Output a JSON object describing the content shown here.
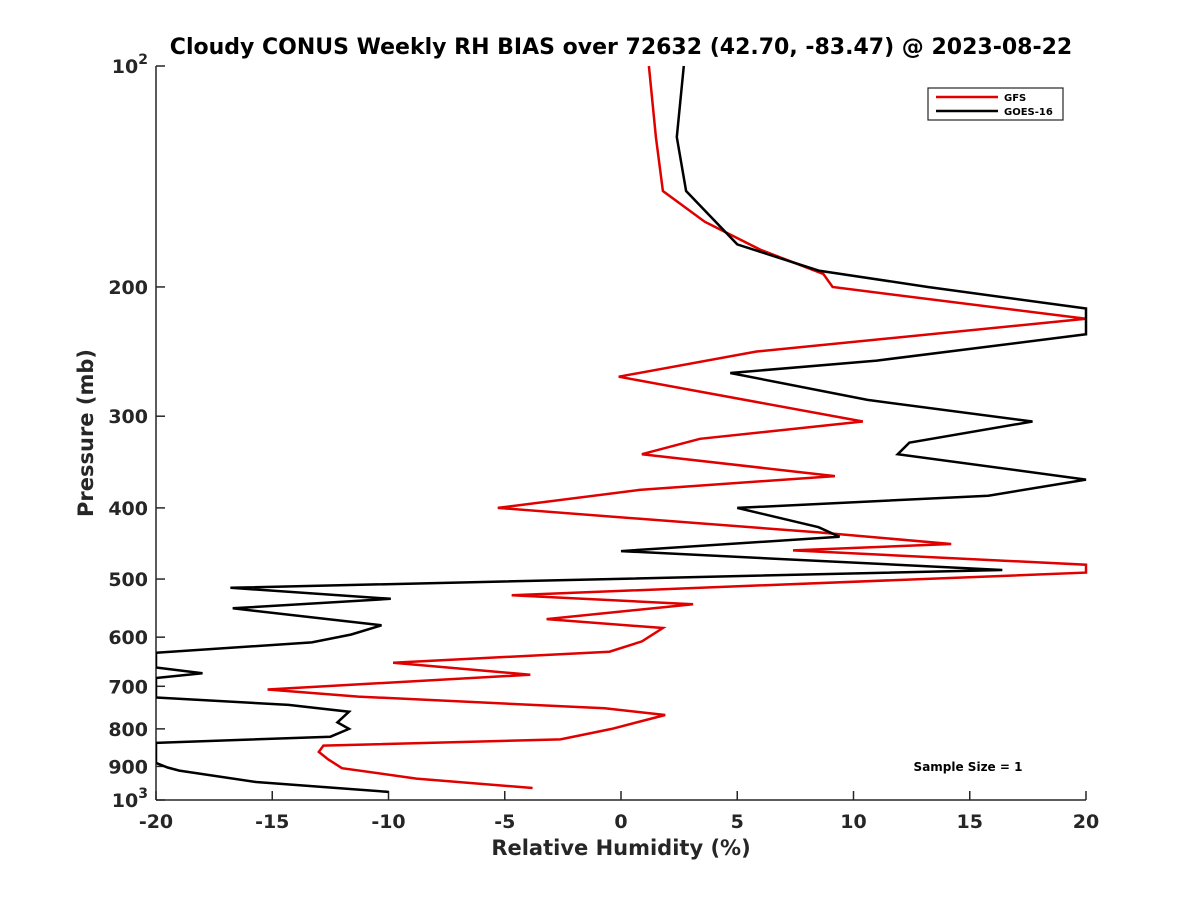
{
  "chart_data": {
    "type": "line",
    "title": "Cloudy CONUS Weekly RH BIAS over 72632 (42.70, -83.47) @ 2023-08-22",
    "xlabel": "Relative Humidity (%)",
    "ylabel": "Pressure (mb)",
    "xlim": [
      -20,
      20
    ],
    "ylim": [
      100,
      1000
    ],
    "yscale": "log",
    "y_reversed": true,
    "xticks": [
      -20,
      -15,
      -10,
      -5,
      0,
      5,
      10,
      15,
      20
    ],
    "xtick_labels": [
      "-20",
      "-15",
      "-10",
      "-5",
      "0",
      "5",
      "10",
      "15",
      "20"
    ],
    "yticks": [
      100,
      200,
      300,
      400,
      500,
      600,
      700,
      800,
      900,
      1000
    ],
    "ytick_labels": [
      {
        "base": "10",
        "exp": "2"
      },
      {
        "base": "200",
        "exp": ""
      },
      {
        "base": "300",
        "exp": ""
      },
      {
        "base": "400",
        "exp": ""
      },
      {
        "base": "500",
        "exp": ""
      },
      {
        "base": "600",
        "exp": ""
      },
      {
        "base": "700",
        "exp": ""
      },
      {
        "base": "800",
        "exp": ""
      },
      {
        "base": "900",
        "exp": ""
      },
      {
        "base": "10",
        "exp": "3"
      }
    ],
    "grid": false,
    "legend_position": "top-right",
    "annotation": "Sample Size = 1",
    "series": [
      {
        "name": "GFS",
        "color": "#e00000",
        "points": [
          [
            1.2,
            100
          ],
          [
            1.5,
            125
          ],
          [
            1.8,
            148
          ],
          [
            3.6,
            163
          ],
          [
            6.0,
            178
          ],
          [
            8.7,
            192
          ],
          [
            9.1,
            200
          ],
          [
            20.0,
            221
          ],
          [
            5.8,
            245
          ],
          [
            -0.1,
            265
          ],
          [
            10.4,
            305
          ],
          [
            3.4,
            322
          ],
          [
            0.9,
            338
          ],
          [
            9.2,
            362
          ],
          [
            0.8,
            378
          ],
          [
            -5.3,
            400
          ],
          [
            8.5,
            432
          ],
          [
            14.2,
            448
          ],
          [
            7.4,
            457
          ],
          [
            20.0,
            478
          ],
          [
            20.0,
            490
          ],
          [
            -4.7,
            526
          ],
          [
            3.1,
            541
          ],
          [
            -3.2,
            567
          ],
          [
            1.8,
            583
          ],
          [
            0.9,
            608
          ],
          [
            -0.5,
            628
          ],
          [
            -9.8,
            650
          ],
          [
            -3.9,
            675
          ],
          [
            -15.2,
            707
          ],
          [
            -11.3,
            723
          ],
          [
            -0.7,
            750
          ],
          [
            1.9,
            766
          ],
          [
            -0.4,
            800
          ],
          [
            -2.6,
            827
          ],
          [
            -12.8,
            843
          ],
          [
            -13.0,
            860
          ],
          [
            -12.6,
            880
          ],
          [
            -12.0,
            905
          ],
          [
            -8.8,
            935
          ],
          [
            -3.8,
            963
          ]
        ]
      },
      {
        "name": "GOES-16",
        "color": "#000000",
        "points": [
          [
            2.7,
            100
          ],
          [
            2.4,
            125
          ],
          [
            2.8,
            148
          ],
          [
            5.0,
            175
          ],
          [
            8.5,
            190
          ],
          [
            13.2,
            200
          ],
          [
            20.0,
            214
          ],
          [
            20.0,
            232
          ],
          [
            11.0,
            252
          ],
          [
            4.7,
            262
          ],
          [
            10.6,
            285
          ],
          [
            17.7,
            305
          ],
          [
            12.4,
            326
          ],
          [
            11.9,
            338
          ],
          [
            20.0,
            366
          ],
          [
            15.8,
            385
          ],
          [
            5.0,
            400
          ],
          [
            8.5,
            425
          ],
          [
            9.4,
            438
          ],
          [
            0.0,
            458
          ],
          [
            16.4,
            486
          ],
          [
            -16.8,
            514
          ],
          [
            -9.9,
            532
          ],
          [
            -16.7,
            548
          ],
          [
            -10.3,
            578
          ],
          [
            -11.6,
            595
          ],
          [
            -13.3,
            610
          ],
          [
            -20.0,
            630
          ],
          [
            -20.0,
            660
          ],
          [
            -18.0,
            672
          ],
          [
            -20.0,
            682
          ],
          [
            -20.0,
            725
          ],
          [
            -14.3,
            742
          ],
          [
            -11.7,
            758
          ],
          [
            -12.2,
            784
          ],
          [
            -11.7,
            800
          ],
          [
            -12.5,
            820
          ],
          [
            -20.0,
            836
          ],
          [
            -20.0,
            890
          ],
          [
            -19.5,
            903
          ],
          [
            -19.0,
            912
          ],
          [
            -15.7,
            945
          ],
          [
            -10.0,
            975
          ]
        ]
      }
    ]
  }
}
